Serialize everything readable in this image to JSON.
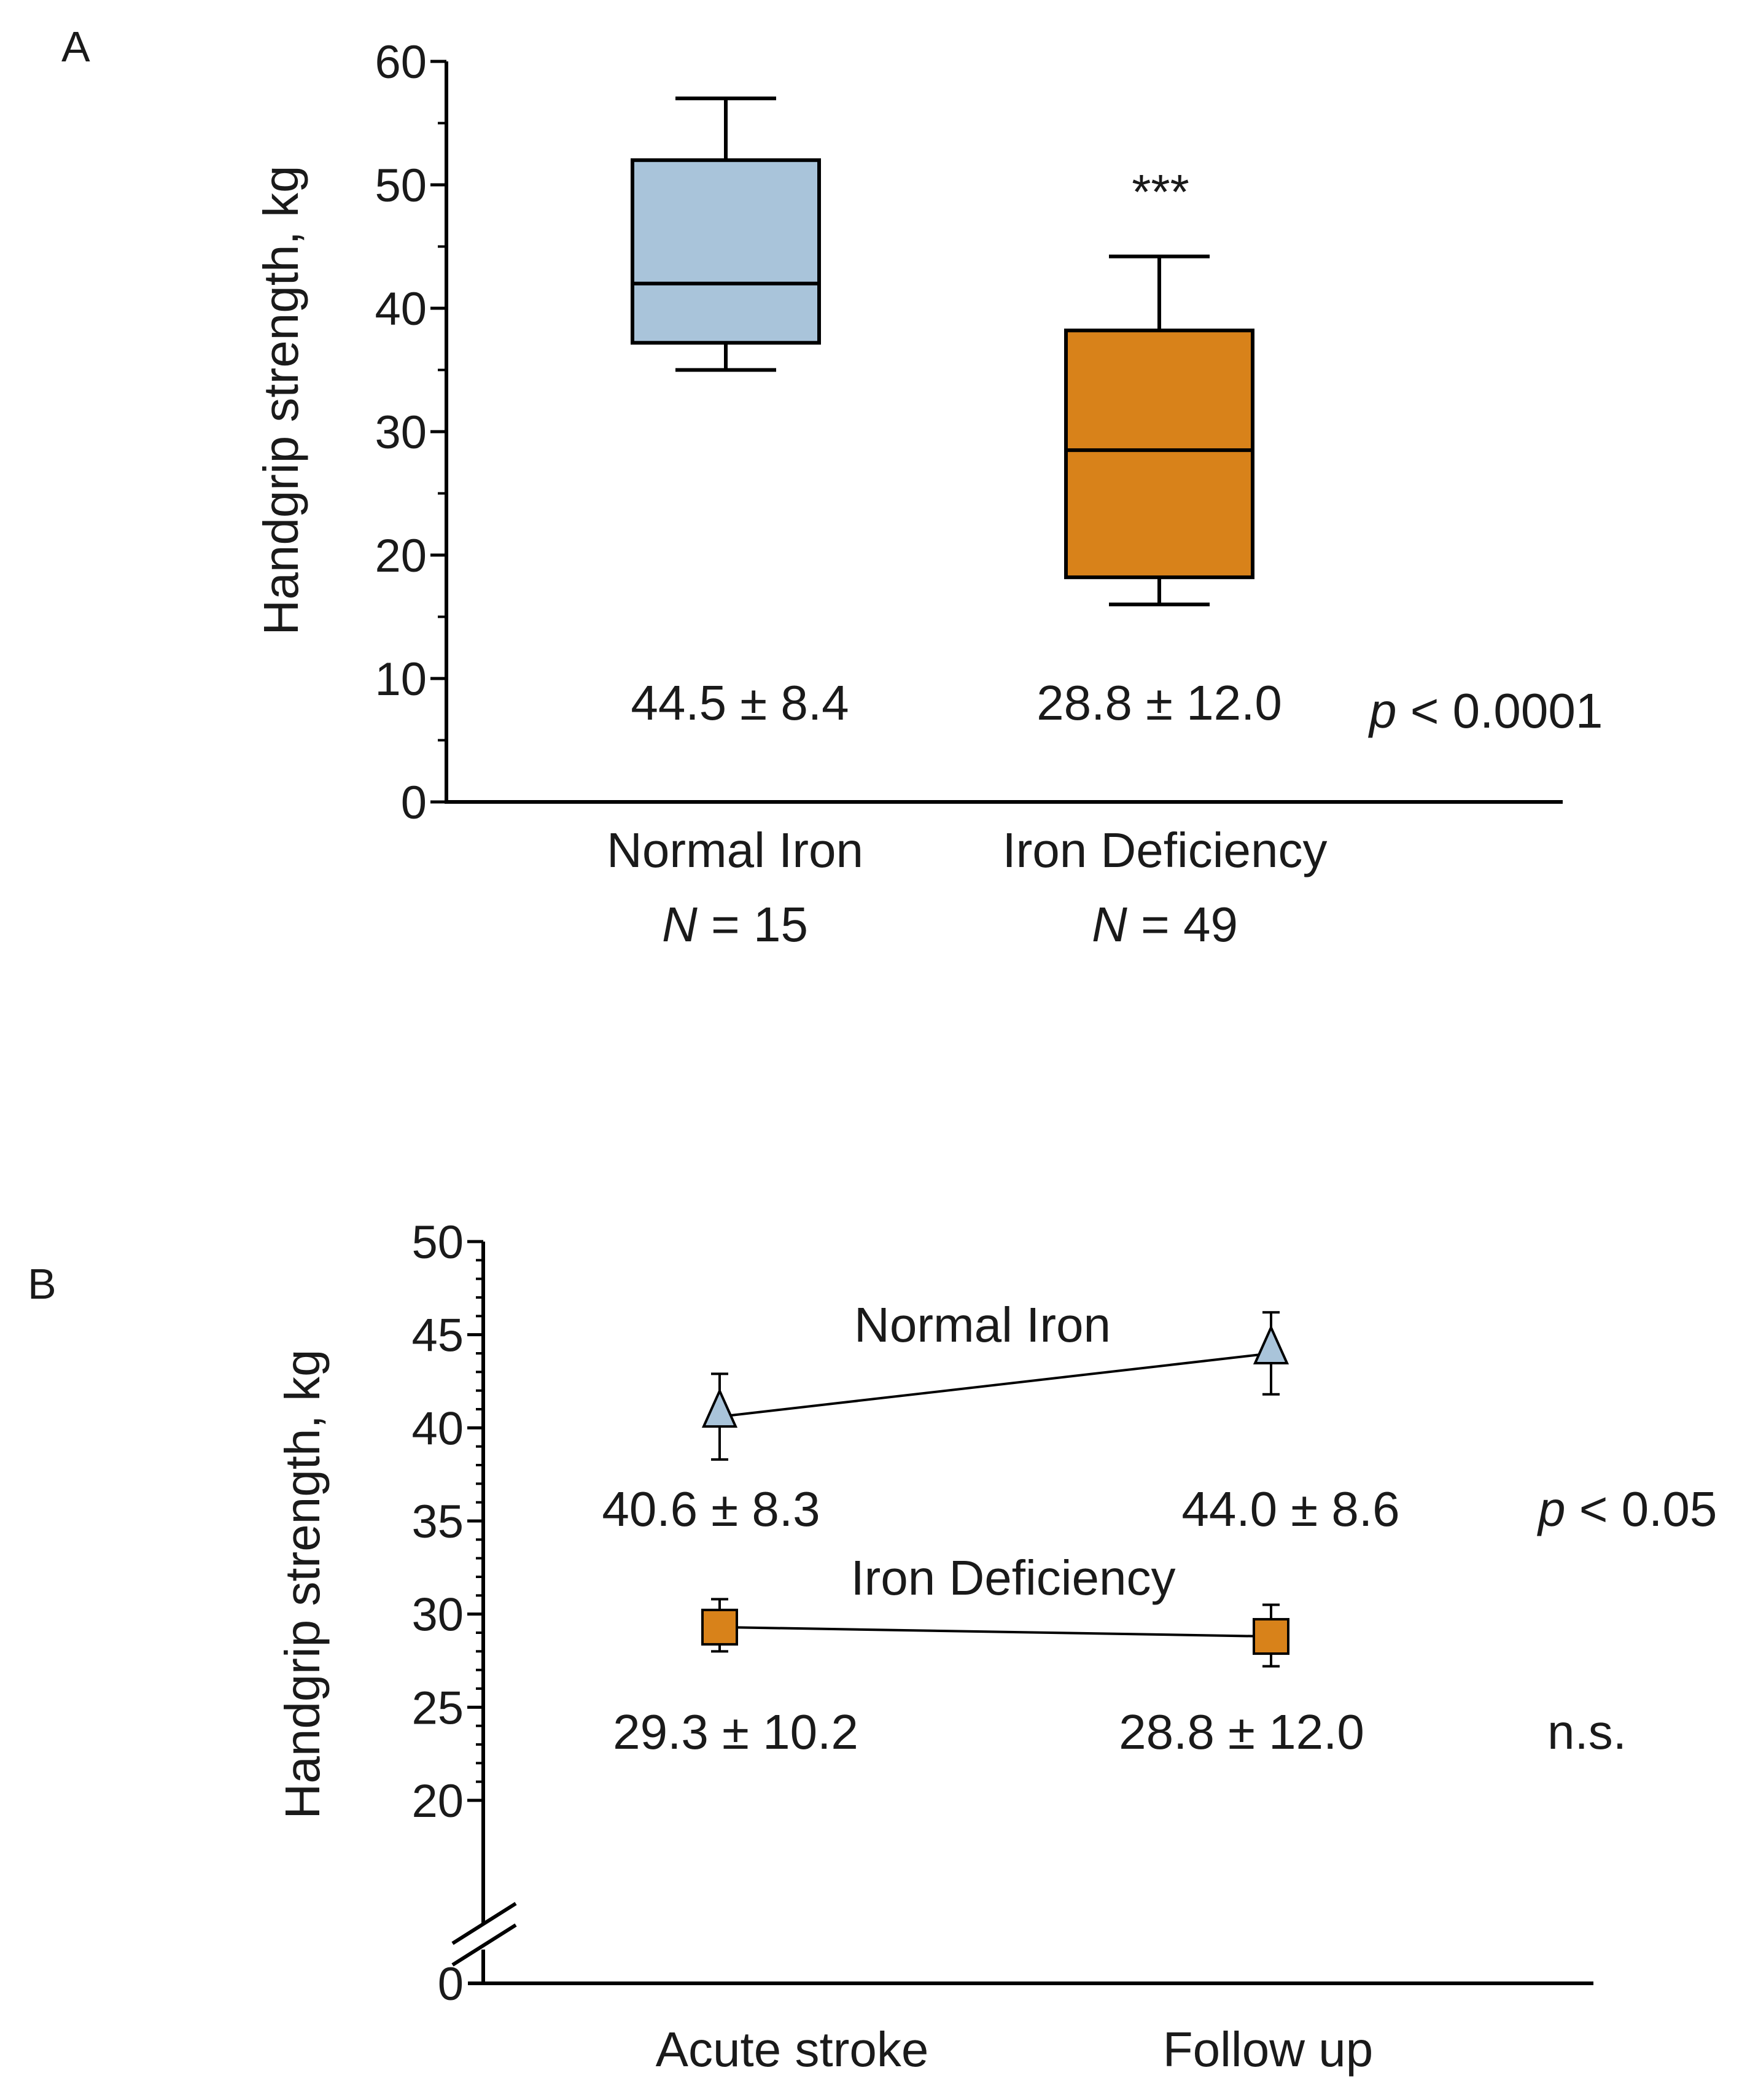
{
  "panels": {
    "a": {
      "label": "A",
      "ylabel": "Handgrip strength, kg",
      "significance": "***",
      "p_label": "p",
      "p_rest": " < 0.0001",
      "groups": [
        {
          "name": "Normal Iron",
          "n_prefix": "N",
          "n_rest": " = 15",
          "stat": "44.5 ± 8.4"
        },
        {
          "name": "Iron Deficiency",
          "n_prefix": "N",
          "n_rest": " = 49",
          "stat": "28.8 ± 12.0"
        }
      ]
    },
    "b": {
      "label": "B",
      "ylabel": "Handgrip strength, kg",
      "categories": [
        "Acute stroke",
        "Follow up"
      ],
      "series": [
        {
          "name": "Normal Iron",
          "stats": [
            "40.6 ± 8.3",
            "44.0 ± 8.6"
          ],
          "p_label": "p",
          "p_rest": " < 0.05",
          "sig": ""
        },
        {
          "name": "Iron Deficiency",
          "stats": [
            "29.3 ± 10.2",
            "28.8 ± 12.0"
          ],
          "p_label": "",
          "p_rest": "",
          "sig": "n.s."
        }
      ]
    }
  },
  "chart_data": [
    {
      "type": "box",
      "title": "",
      "xlabel": "",
      "ylabel": "Handgrip strength, kg",
      "ylim": [
        0,
        60
      ],
      "yticks": [
        0,
        10,
        20,
        30,
        40,
        50,
        60
      ],
      "categories": [
        "Normal Iron",
        "Iron Deficiency"
      ],
      "boxes": [
        {
          "name": "Normal Iron",
          "n": 15,
          "whisker_low": 35,
          "q1": 37.2,
          "median": 42,
          "q3": 52,
          "whisker_high": 57,
          "mean_sd": "44.5 ± 8.4",
          "color": "#a9c4da"
        },
        {
          "name": "Iron Deficiency",
          "n": 49,
          "whisker_low": 16,
          "q1": 18.2,
          "median": 28.5,
          "q3": 38.2,
          "whisker_high": 44.2,
          "mean_sd": "28.8 ± 12.0",
          "color": "#d8821a"
        }
      ],
      "annotations": [
        "***",
        "p < 0.0001"
      ],
      "grid": false
    },
    {
      "type": "line",
      "title": "",
      "xlabel": "",
      "ylabel": "Handgrip strength, kg",
      "ylim": [
        0,
        50
      ],
      "axis_break": true,
      "yticks": [
        0,
        20,
        25,
        30,
        35,
        40,
        45,
        50
      ],
      "categories": [
        "Acute stroke",
        "Follow up"
      ],
      "series": [
        {
          "name": "Normal Iron",
          "marker": "triangle",
          "color": "#a9c4da",
          "values": [
            40.6,
            44.0
          ],
          "err_low": [
            38.3,
            41.8
          ],
          "err_high": [
            42.9,
            46.2
          ]
        },
        {
          "name": "Iron Deficiency",
          "marker": "square",
          "color": "#d8821a",
          "values": [
            29.3,
            28.8
          ],
          "err_low": [
            28.0,
            27.2
          ],
          "err_high": [
            30.8,
            30.5
          ]
        }
      ],
      "annotations": [
        "p < 0.05",
        "n.s."
      ],
      "grid": false
    }
  ]
}
